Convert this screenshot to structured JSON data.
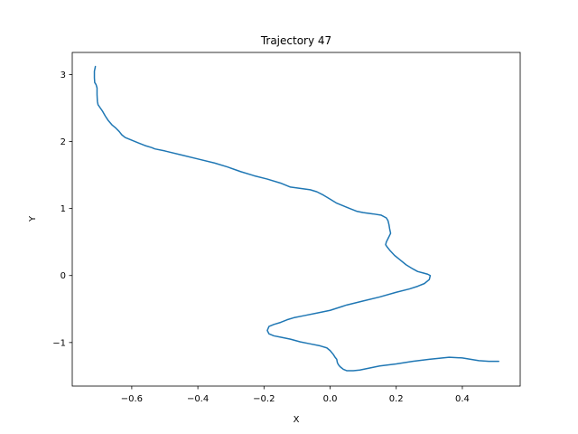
{
  "chart_data": {
    "type": "line",
    "title": "Trajectory 47",
    "xlabel": "X",
    "ylabel": "Y",
    "xlim": [
      -0.78,
      0.575
    ],
    "ylim": [
      -1.65,
      3.33
    ],
    "grid": false,
    "xticks": [
      -0.6,
      -0.4,
      -0.2,
      0.0,
      0.2,
      0.4
    ],
    "xtick_labels": [
      "−0.6",
      "−0.4",
      "−0.2",
      "0.0",
      "0.2",
      "0.4"
    ],
    "yticks": [
      -1,
      0,
      1,
      2,
      3
    ],
    "ytick_labels": [
      "−1",
      "0",
      "1",
      "2",
      "3"
    ],
    "series": [
      {
        "color": "#1f77b4",
        "x": [
          -0.71,
          -0.713,
          -0.713,
          -0.712,
          -0.708,
          -0.705,
          -0.705,
          -0.704,
          -0.702,
          -0.695,
          -0.688,
          -0.68,
          -0.672,
          -0.66,
          -0.648,
          -0.638,
          -0.63,
          -0.62,
          -0.6,
          -0.58,
          -0.56,
          -0.54,
          -0.53,
          -0.5,
          -0.45,
          -0.4,
          -0.35,
          -0.31,
          -0.27,
          -0.23,
          -0.19,
          -0.15,
          -0.12,
          -0.09,
          -0.06,
          -0.04,
          -0.02,
          0.0,
          0.02,
          0.04,
          0.06,
          0.08,
          0.1,
          0.13,
          0.155,
          0.17,
          0.175,
          0.178,
          0.18,
          0.183,
          0.18,
          0.175,
          0.17,
          0.168,
          0.172,
          0.18,
          0.195,
          0.21,
          0.23,
          0.25,
          0.265,
          0.28,
          0.295,
          0.303,
          0.3,
          0.285,
          0.265,
          0.24,
          0.2,
          0.15,
          0.1,
          0.05,
          0.0,
          -0.04,
          -0.08,
          -0.11,
          -0.13,
          -0.15,
          -0.17,
          -0.185,
          -0.19,
          -0.185,
          -0.17,
          -0.15,
          -0.12,
          -0.09,
          -0.06,
          -0.03,
          -0.01,
          0.0,
          0.01,
          0.015,
          0.02,
          0.022,
          0.025,
          0.03,
          0.035,
          0.04,
          0.045,
          0.05,
          0.07,
          0.09,
          0.1,
          0.12,
          0.15,
          0.2,
          0.25,
          0.3,
          0.36,
          0.4,
          0.45,
          0.48,
          0.51
        ],
        "y": [
          3.12,
          3.05,
          2.95,
          2.88,
          2.85,
          2.8,
          2.7,
          2.6,
          2.55,
          2.5,
          2.45,
          2.38,
          2.32,
          2.25,
          2.2,
          2.15,
          2.1,
          2.06,
          2.02,
          1.98,
          1.94,
          1.91,
          1.89,
          1.86,
          1.8,
          1.74,
          1.68,
          1.62,
          1.55,
          1.49,
          1.44,
          1.38,
          1.32,
          1.3,
          1.28,
          1.25,
          1.2,
          1.14,
          1.08,
          1.04,
          1.0,
          0.96,
          0.94,
          0.92,
          0.9,
          0.86,
          0.82,
          0.76,
          0.7,
          0.63,
          0.6,
          0.55,
          0.5,
          0.46,
          0.43,
          0.38,
          0.3,
          0.24,
          0.16,
          0.1,
          0.06,
          0.04,
          0.02,
          0.0,
          -0.06,
          -0.12,
          -0.16,
          -0.2,
          -0.25,
          -0.32,
          -0.38,
          -0.44,
          -0.52,
          -0.56,
          -0.6,
          -0.63,
          -0.66,
          -0.7,
          -0.73,
          -0.76,
          -0.82,
          -0.87,
          -0.9,
          -0.92,
          -0.95,
          -0.99,
          -1.02,
          -1.05,
          -1.08,
          -1.12,
          -1.18,
          -1.22,
          -1.25,
          -1.3,
          -1.33,
          -1.36,
          -1.38,
          -1.4,
          -1.41,
          -1.42,
          -1.42,
          -1.41,
          -1.4,
          -1.38,
          -1.35,
          -1.32,
          -1.28,
          -1.25,
          -1.22,
          -1.23,
          -1.27,
          -1.28,
          -1.28
        ]
      }
    ]
  }
}
